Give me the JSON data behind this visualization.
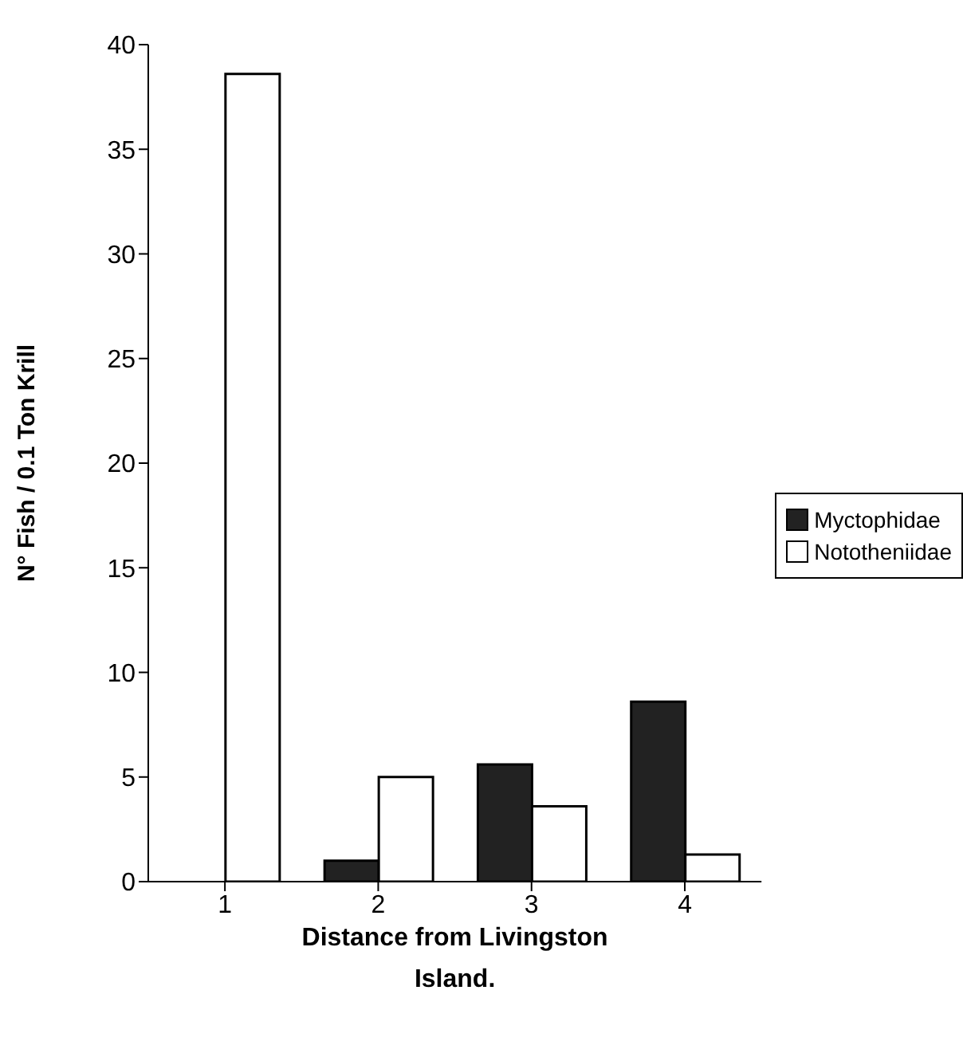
{
  "chart_data": {
    "type": "bar",
    "xlabel": "Distance from Livingston Island.",
    "ylabel": "N° Fish / 0.1 Ton Krill",
    "categories": [
      "1",
      "2",
      "3",
      "4"
    ],
    "series": [
      {
        "name": "Myctophidae",
        "color": "#222222",
        "values": [
          0,
          1.0,
          5.6,
          8.6
        ]
      },
      {
        "name": "Nototheniidae",
        "color": "#ffffff",
        "values": [
          38.6,
          5.0,
          3.6,
          1.3
        ]
      }
    ],
    "ylim": [
      0,
      40
    ],
    "yticks": [
      0,
      5,
      10,
      15,
      20,
      25,
      30,
      35,
      40
    ],
    "grid": false,
    "legend": "right"
  }
}
